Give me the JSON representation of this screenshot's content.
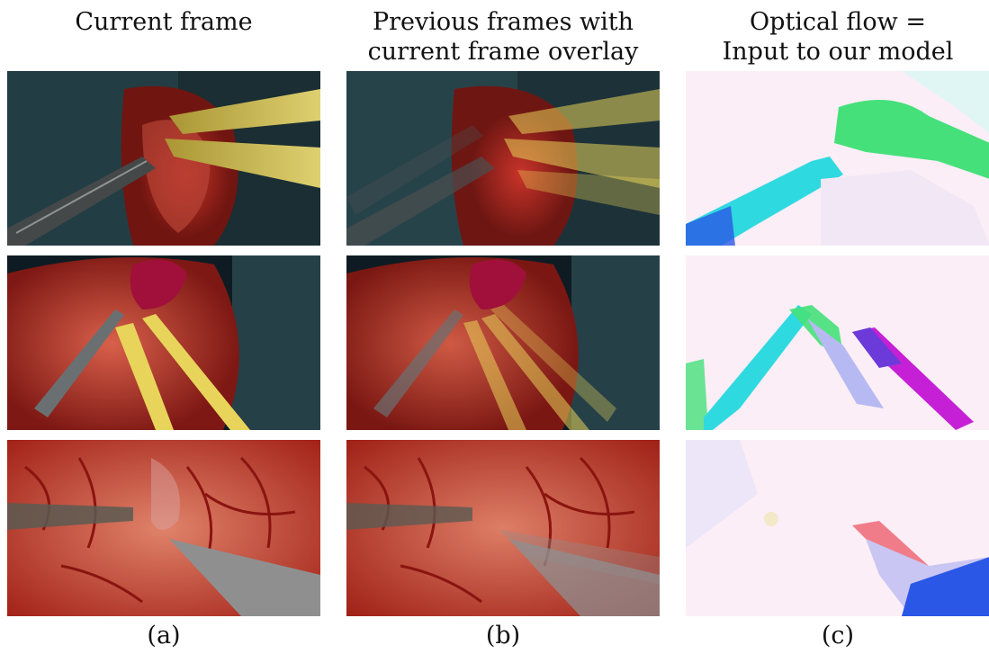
{
  "columns": [
    {
      "header_lines": [
        "Current frame"
      ],
      "caption": "(a)"
    },
    {
      "header_lines": [
        "Previous frames with",
        "current frame overlay"
      ],
      "caption": "(b)"
    },
    {
      "header_lines": [
        "Optical flow =",
        "Input to our model"
      ],
      "caption": "(c)"
    }
  ],
  "colors": {
    "tissue_red": "#b3201a",
    "instrument_yellow": "#e8d45a",
    "drape_teal": "#2c4a52",
    "flow_green": "#46e07a",
    "flow_cyan": "#2fd9e0",
    "flow_blue": "#2a57e6",
    "flow_magenta": "#c620d6",
    "flow_background": "#fbeef6"
  }
}
